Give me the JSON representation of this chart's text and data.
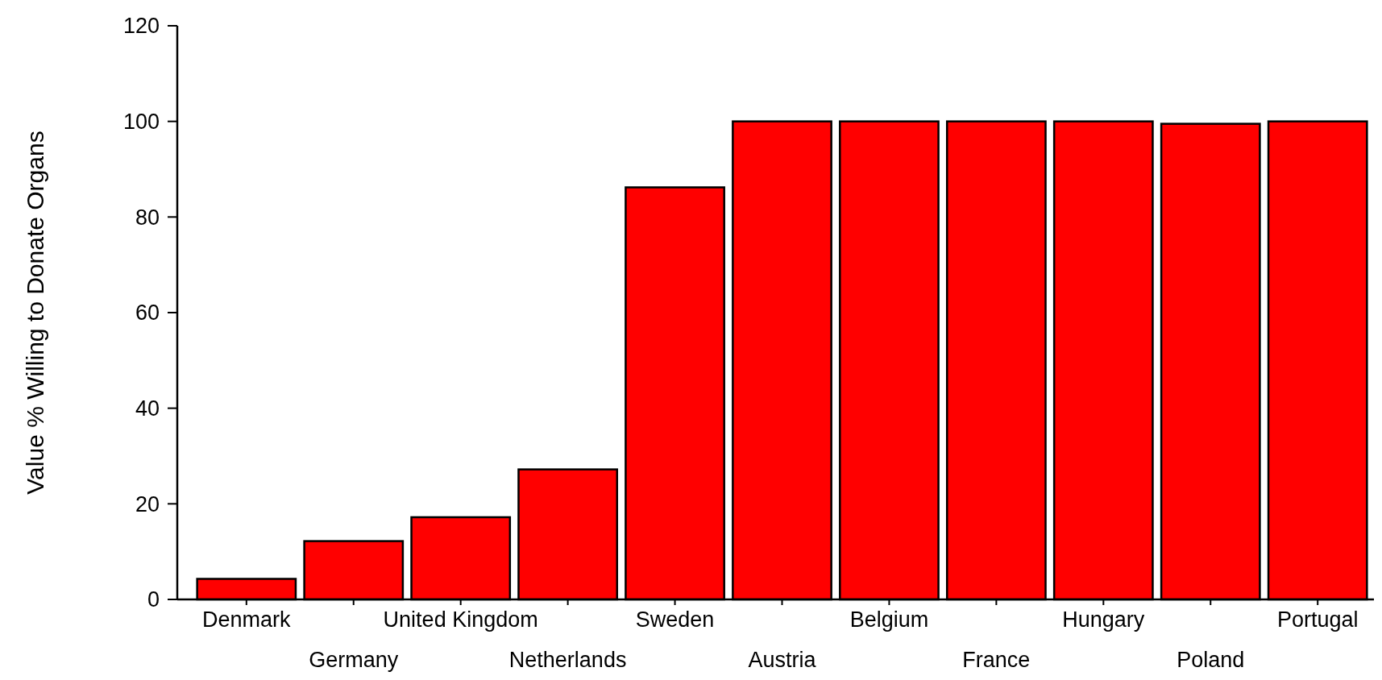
{
  "chart_data": {
    "type": "bar",
    "ylabel": "Value % Willing to Donate Organs",
    "categories": [
      "Denmark",
      "Germany",
      "United Kingdom",
      "Netherlands",
      "Sweden",
      "Austria",
      "Belgium",
      "France",
      "Hungary",
      "Poland",
      "Portugal"
    ],
    "values": [
      4.3,
      12.2,
      17.2,
      27.2,
      86.2,
      100,
      100,
      100,
      100,
      99.5,
      100
    ],
    "color": "#ff0000",
    "ylim": [
      0,
      120
    ],
    "yticks": [
      0,
      20,
      40,
      60,
      80,
      100,
      120
    ],
    "grid": false
  }
}
